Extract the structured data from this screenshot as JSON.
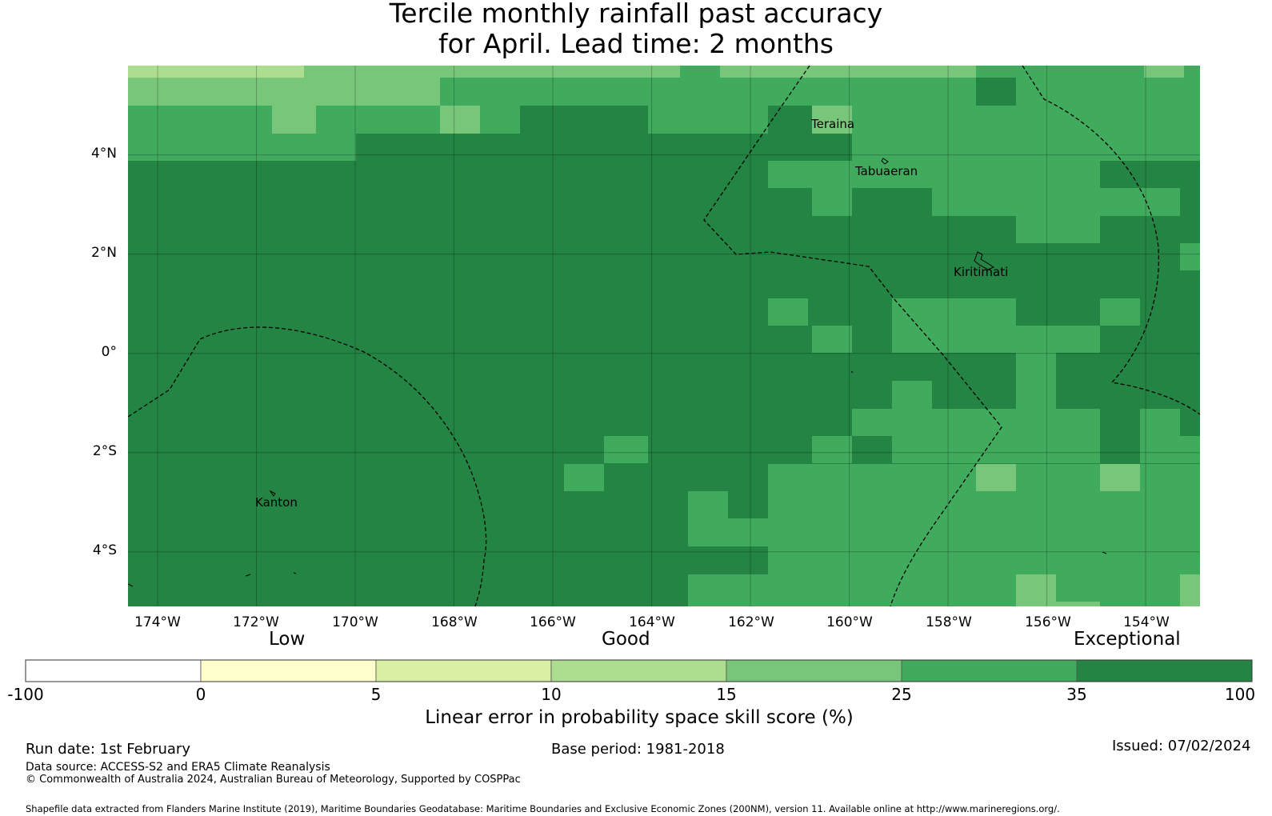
{
  "title": {
    "line1": "Tercile monthly rainfall past accuracy",
    "line2": "for April. Lead time: 2 months"
  },
  "map": {
    "lon_range": [
      -174.6,
      -152.9
    ],
    "lat_range": [
      -5.1,
      5.8
    ],
    "lon_ticks": [
      {
        "value": -174,
        "label": "174°W"
      },
      {
        "value": -172,
        "label": "172°W"
      },
      {
        "value": -170,
        "label": "170°W"
      },
      {
        "value": -168,
        "label": "168°W"
      },
      {
        "value": -166,
        "label": "166°W"
      },
      {
        "value": -164,
        "label": "164°W"
      },
      {
        "value": -162,
        "label": "162°W"
      },
      {
        "value": -160,
        "label": "160°W"
      },
      {
        "value": -158,
        "label": "158°W"
      },
      {
        "value": -156,
        "label": "156°W"
      },
      {
        "value": -154,
        "label": "154°W"
      }
    ],
    "lat_ticks": [
      {
        "value": 4,
        "label": "4°N"
      },
      {
        "value": 2,
        "label": "2°N"
      },
      {
        "value": 0,
        "label": "0°"
      },
      {
        "value": -2,
        "label": "2°S"
      },
      {
        "value": -4,
        "label": "4°S"
      }
    ],
    "places": {
      "teraina": "Teraina",
      "tabuaeran": "Tabuaeran",
      "kiritimati": "Kiritimati",
      "kanton": "Kanton"
    }
  },
  "legend": {
    "category_low": "Low",
    "category_good": "Good",
    "category_exceptional": "Exceptional",
    "bins": [
      {
        "from": -100,
        "to": 0,
        "color": "#ffffff"
      },
      {
        "from": 0,
        "to": 5,
        "color": "#ffffcc"
      },
      {
        "from": 5,
        "to": 10,
        "color": "#d9f0a3"
      },
      {
        "from": 10,
        "to": 15,
        "color": "#addd8e"
      },
      {
        "from": 15,
        "to": 25,
        "color": "#78c679"
      },
      {
        "from": 25,
        "to": 35,
        "color": "#41ab5d"
      },
      {
        "from": 35,
        "to": 100,
        "color": "#238443"
      }
    ],
    "tick_labels": [
      "-100",
      "0",
      "5",
      "10",
      "15",
      "25",
      "35",
      "100"
    ],
    "axis_label": "Linear error in probability space skill score (%)"
  },
  "footer": {
    "run_date": "Run date: 1st February",
    "base_period": "Base period: 1981-2018",
    "issued": "Issued: 07/02/2024",
    "data_source": "Data source: ACCESS-S2 and ERA5 Climate Reanalysis",
    "copyright": "© Commonwealth of Australia 2024, Australian Bureau of Meteorology, Supported by COSPPac",
    "shapefile": "Shapefile data extracted from Flanders Marine Institute (2019), Maritime Boundaries Geodatabase: Maritime Boundaries and Exclusive Economic Zones (200NM), version 11. Available online at http://www.marineregions.org/."
  }
}
